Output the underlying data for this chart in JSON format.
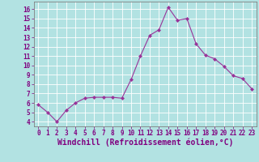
{
  "x": [
    0,
    1,
    2,
    3,
    4,
    5,
    6,
    7,
    8,
    9,
    10,
    11,
    12,
    13,
    14,
    15,
    16,
    17,
    18,
    19,
    20,
    21,
    22,
    23
  ],
  "y": [
    5.8,
    5.0,
    4.0,
    5.2,
    6.0,
    6.5,
    6.6,
    6.6,
    6.6,
    6.5,
    8.5,
    11.0,
    13.2,
    13.8,
    16.2,
    14.8,
    15.0,
    12.3,
    11.1,
    10.7,
    9.9,
    8.9,
    8.6,
    7.5
  ],
  "line_color": "#993399",
  "marker_color": "#993399",
  "bg_color": "#b2e2e2",
  "grid_color": "#ffffff",
  "xlabel": "Windchill (Refroidissement éolien,°C)",
  "xlim": [
    -0.5,
    23.5
  ],
  "ylim": [
    3.5,
    16.8
  ],
  "yticks": [
    4,
    5,
    6,
    7,
    8,
    9,
    10,
    11,
    12,
    13,
    14,
    15,
    16
  ],
  "xticks": [
    0,
    1,
    2,
    3,
    4,
    5,
    6,
    7,
    8,
    9,
    10,
    11,
    12,
    13,
    14,
    15,
    16,
    17,
    18,
    19,
    20,
    21,
    22,
    23
  ],
  "tick_label_fontsize": 5.5,
  "xlabel_fontsize": 7.0,
  "text_color": "#800080",
  "spine_color": "#808080"
}
